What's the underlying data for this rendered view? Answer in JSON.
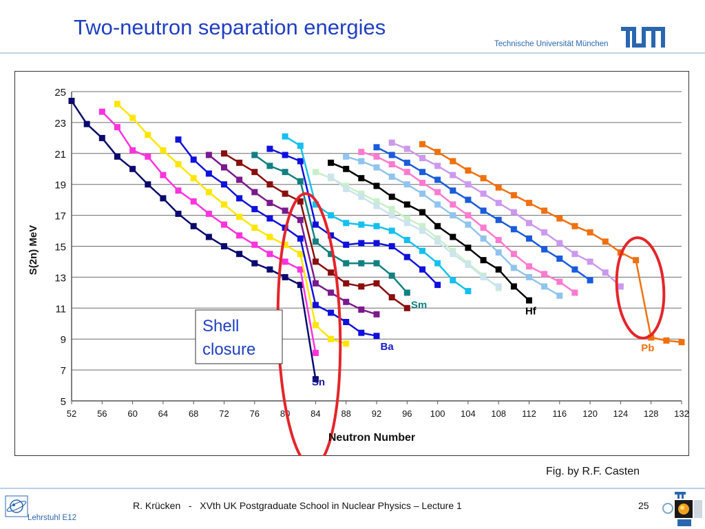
{
  "slide_title": "Two-neutron separation energies",
  "header": {
    "university": "Technische Universität München",
    "logo_text": "TUM"
  },
  "footer": {
    "text": "R. Krücken   -   XVth UK Postgraduate School in Nuclear Physics – Lecture 1",
    "page": "25",
    "chair": "Lehrstuhl E12"
  },
  "fig_credit": "Fig. by R.F. Casten",
  "annotation": {
    "line1": "Shell",
    "line2": "closure"
  },
  "colors": {
    "title": "#1f3fc1",
    "highlight": "#e4252a",
    "annotation_border": "#333333"
  },
  "chart_data": {
    "type": "line",
    "xlabel": "Neutron Number",
    "ylabel": "S(2n) MeV",
    "xlim": [
      52,
      132
    ],
    "ylim": [
      5,
      25
    ],
    "xticks": [
      52,
      56,
      60,
      64,
      68,
      72,
      76,
      80,
      84,
      88,
      92,
      96,
      100,
      104,
      108,
      112,
      116,
      120,
      124,
      128,
      132
    ],
    "yticks": [
      5,
      7,
      9,
      11,
      13,
      15,
      17,
      19,
      21,
      23,
      25
    ],
    "grid": "horizontal",
    "series": [
      {
        "name": "Sn",
        "label": "Sn",
        "color": "#0a0a6e",
        "label_color": "#1a1a9a",
        "label_at": [
          83.5,
          6.0
        ],
        "points": [
          [
            52,
            24.4
          ],
          [
            54,
            22.9
          ],
          [
            56,
            22.0
          ],
          [
            58,
            20.8
          ],
          [
            60,
            20.0
          ],
          [
            62,
            19.0
          ],
          [
            64,
            18.1
          ],
          [
            66,
            17.1
          ],
          [
            68,
            16.3
          ],
          [
            70,
            15.6
          ],
          [
            72,
            15.0
          ],
          [
            74,
            14.5
          ],
          [
            76,
            13.9
          ],
          [
            78,
            13.5
          ],
          [
            80,
            13.0
          ],
          [
            82,
            12.5
          ],
          [
            84,
            6.4
          ]
        ]
      },
      {
        "name": "",
        "color": "#ff33dd",
        "points": [
          [
            56,
            23.7
          ],
          [
            58,
            22.7
          ],
          [
            60,
            21.2
          ],
          [
            62,
            20.8
          ],
          [
            64,
            19.6
          ],
          [
            66,
            18.6
          ],
          [
            68,
            17.9
          ],
          [
            70,
            17.1
          ],
          [
            72,
            16.4
          ],
          [
            74,
            15.7
          ],
          [
            76,
            15.1
          ],
          [
            78,
            14.5
          ],
          [
            80,
            14.0
          ],
          [
            82,
            13.5
          ],
          [
            84,
            8.1
          ]
        ]
      },
      {
        "name": "",
        "color": "#ffe600",
        "points": [
          [
            58,
            24.2
          ],
          [
            60,
            23.3
          ],
          [
            62,
            22.2
          ],
          [
            64,
            21.2
          ],
          [
            66,
            20.3
          ],
          [
            68,
            19.4
          ],
          [
            70,
            18.5
          ],
          [
            72,
            17.7
          ],
          [
            74,
            16.9
          ],
          [
            76,
            16.2
          ],
          [
            78,
            15.6
          ],
          [
            80,
            15.1
          ],
          [
            82,
            14.5
          ],
          [
            84,
            9.9
          ],
          [
            86,
            9.0
          ],
          [
            88,
            8.7
          ]
        ]
      },
      {
        "name": "Ba",
        "label": "Ba",
        "color": "#1010dd",
        "label_color": "#1a1acc",
        "label_at": [
          92.5,
          8.3
        ],
        "points": [
          [
            66,
            21.9
          ],
          [
            68,
            20.6
          ],
          [
            70,
            19.7
          ],
          [
            72,
            19.0
          ],
          [
            74,
            18.1
          ],
          [
            76,
            17.4
          ],
          [
            78,
            16.8
          ],
          [
            80,
            16.2
          ],
          [
            82,
            15.5
          ],
          [
            84,
            11.2
          ],
          [
            86,
            10.7
          ],
          [
            88,
            10.1
          ],
          [
            90,
            9.4
          ],
          [
            92,
            9.2
          ]
        ]
      },
      {
        "name": "",
        "color": "#7a1a8c",
        "points": [
          [
            70,
            20.9
          ],
          [
            72,
            20.1
          ],
          [
            74,
            19.3
          ],
          [
            76,
            18.5
          ],
          [
            78,
            17.8
          ],
          [
            80,
            17.3
          ],
          [
            82,
            16.7
          ],
          [
            84,
            12.6
          ],
          [
            86,
            12.0
          ],
          [
            88,
            11.4
          ],
          [
            90,
            10.9
          ],
          [
            92,
            10.6
          ]
        ]
      },
      {
        "name": "",
        "color": "#8a0e0e",
        "points": [
          [
            72,
            21.0
          ],
          [
            74,
            20.4
          ],
          [
            76,
            19.8
          ],
          [
            78,
            19.0
          ],
          [
            80,
            18.4
          ],
          [
            82,
            17.9
          ],
          [
            84,
            14.0
          ],
          [
            86,
            13.3
          ],
          [
            88,
            12.6
          ],
          [
            90,
            12.4
          ],
          [
            92,
            12.6
          ],
          [
            94,
            11.7
          ],
          [
            96,
            11.0
          ]
        ]
      },
      {
        "name": "Sm",
        "label": "Sm",
        "color": "#128080",
        "label_color": "#128080",
        "label_at": [
          96.5,
          11.0
        ],
        "points": [
          [
            76,
            20.9
          ],
          [
            78,
            20.2
          ],
          [
            80,
            19.8
          ],
          [
            82,
            19.2
          ],
          [
            84,
            15.3
          ],
          [
            86,
            14.5
          ],
          [
            88,
            13.9
          ],
          [
            90,
            13.9
          ],
          [
            92,
            13.9
          ],
          [
            94,
            13.1
          ],
          [
            96,
            12.0
          ]
        ]
      },
      {
        "name": "",
        "color": "#1010dd",
        "points": [
          [
            78,
            21.3
          ],
          [
            80,
            20.9
          ],
          [
            82,
            20.5
          ],
          [
            84,
            16.4
          ],
          [
            86,
            15.7
          ],
          [
            88,
            15.1
          ],
          [
            90,
            15.2
          ],
          [
            92,
            15.2
          ],
          [
            94,
            15.0
          ],
          [
            96,
            14.3
          ],
          [
            98,
            13.5
          ],
          [
            100,
            12.5
          ]
        ]
      },
      {
        "name": "",
        "color": "#15c0ee",
        "points": [
          [
            80,
            22.1
          ],
          [
            82,
            21.5
          ],
          [
            84,
            17.7
          ],
          [
            86,
            17.0
          ],
          [
            88,
            16.5
          ],
          [
            90,
            16.4
          ],
          [
            92,
            16.3
          ],
          [
            94,
            16.0
          ],
          [
            96,
            15.4
          ],
          [
            98,
            14.7
          ],
          [
            100,
            13.9
          ],
          [
            102,
            12.8
          ],
          [
            104,
            12.1
          ]
        ]
      },
      {
        "name": "",
        "color": "#000000",
        "points": [
          [
            86,
            20.4
          ],
          [
            88,
            20.0
          ],
          [
            90,
            19.4
          ],
          [
            92,
            18.9
          ],
          [
            94,
            18.2
          ],
          [
            96,
            17.7
          ],
          [
            98,
            17.2
          ],
          [
            100,
            16.3
          ],
          [
            102,
            15.6
          ],
          [
            104,
            14.9
          ],
          [
            106,
            14.1
          ],
          [
            108,
            13.5
          ],
          [
            110,
            12.4
          ],
          [
            112,
            11.5
          ]
        ]
      },
      {
        "name": "Hf",
        "label": "Hf",
        "color": "#000000",
        "label_color": "#000000",
        "label_at": [
          111.5,
          10.6
        ],
        "points": []
      },
      {
        "name": "",
        "color": "#c8f0c8",
        "points": [
          [
            84,
            19.8
          ],
          [
            86,
            19.4
          ],
          [
            88,
            18.9
          ],
          [
            90,
            18.4
          ],
          [
            92,
            17.9
          ],
          [
            94,
            17.4
          ],
          [
            96,
            16.8
          ],
          [
            98,
            16.3
          ],
          [
            100,
            15.5
          ],
          [
            102,
            14.7
          ],
          [
            104,
            13.9
          ],
          [
            106,
            13.1
          ],
          [
            108,
            12.3
          ]
        ]
      },
      {
        "name": "",
        "color": "#cce4ee",
        "points": [
          [
            86,
            19.5
          ],
          [
            88,
            18.7
          ],
          [
            90,
            18.2
          ],
          [
            92,
            17.6
          ],
          [
            94,
            17.0
          ],
          [
            96,
            16.5
          ],
          [
            98,
            16.0
          ],
          [
            100,
            15.3
          ],
          [
            102,
            14.5
          ],
          [
            104,
            13.8
          ],
          [
            106,
            13.0
          ],
          [
            108,
            12.4
          ]
        ]
      },
      {
        "name": "",
        "color": "#90c4ee",
        "points": [
          [
            88,
            20.8
          ],
          [
            90,
            20.5
          ],
          [
            92,
            20.1
          ],
          [
            94,
            19.5
          ],
          [
            96,
            19.0
          ],
          [
            98,
            18.4
          ],
          [
            100,
            17.7
          ],
          [
            102,
            17.0
          ],
          [
            104,
            16.4
          ],
          [
            106,
            15.5
          ],
          [
            108,
            14.6
          ],
          [
            110,
            13.6
          ],
          [
            112,
            13.0
          ],
          [
            114,
            12.4
          ],
          [
            116,
            11.8
          ]
        ]
      },
      {
        "name": "",
        "color": "#ff7ad0",
        "points": [
          [
            90,
            21.1
          ],
          [
            92,
            20.8
          ],
          [
            94,
            20.3
          ],
          [
            96,
            19.8
          ],
          [
            98,
            19.1
          ],
          [
            100,
            18.5
          ],
          [
            102,
            17.7
          ],
          [
            104,
            17.0
          ],
          [
            106,
            16.2
          ],
          [
            108,
            15.4
          ],
          [
            110,
            14.5
          ],
          [
            112,
            13.7
          ],
          [
            114,
            13.2
          ],
          [
            116,
            12.7
          ],
          [
            118,
            12.0
          ]
        ]
      },
      {
        "name": "",
        "color": "#cc99ee",
        "points": [
          [
            94,
            21.7
          ],
          [
            96,
            21.3
          ],
          [
            98,
            20.7
          ],
          [
            100,
            20.2
          ],
          [
            102,
            19.6
          ],
          [
            104,
            19.0
          ],
          [
            106,
            18.4
          ],
          [
            108,
            17.8
          ],
          [
            110,
            17.2
          ],
          [
            112,
            16.5
          ],
          [
            114,
            15.9
          ],
          [
            116,
            15.2
          ],
          [
            118,
            14.5
          ],
          [
            120,
            14.0
          ],
          [
            122,
            13.3
          ],
          [
            124,
            12.4
          ]
        ]
      },
      {
        "name": "",
        "color": "#1a5bdd",
        "points": [
          [
            92,
            21.4
          ],
          [
            94,
            20.9
          ],
          [
            96,
            20.4
          ],
          [
            98,
            19.8
          ],
          [
            100,
            19.3
          ],
          [
            102,
            18.6
          ],
          [
            104,
            18.0
          ],
          [
            106,
            17.3
          ],
          [
            108,
            16.7
          ],
          [
            110,
            16.1
          ],
          [
            112,
            15.5
          ],
          [
            114,
            14.8
          ],
          [
            116,
            14.2
          ],
          [
            118,
            13.5
          ],
          [
            120,
            12.8
          ]
        ]
      },
      {
        "name": "Pb",
        "label": "Pb",
        "color": "#f07010",
        "label_color": "#f07010",
        "label_at": [
          126.7,
          8.2
        ],
        "points": [
          [
            98,
            21.6
          ],
          [
            100,
            21.1
          ],
          [
            102,
            20.5
          ],
          [
            104,
            19.9
          ],
          [
            106,
            19.4
          ],
          [
            108,
            18.8
          ],
          [
            110,
            18.3
          ],
          [
            112,
            17.8
          ],
          [
            114,
            17.3
          ],
          [
            116,
            16.8
          ],
          [
            118,
            16.3
          ],
          [
            120,
            15.9
          ],
          [
            122,
            15.3
          ],
          [
            124,
            14.6
          ],
          [
            126,
            14.1
          ],
          [
            128,
            9.1
          ],
          [
            130,
            8.9
          ],
          [
            132,
            8.8
          ]
        ]
      }
    ]
  }
}
